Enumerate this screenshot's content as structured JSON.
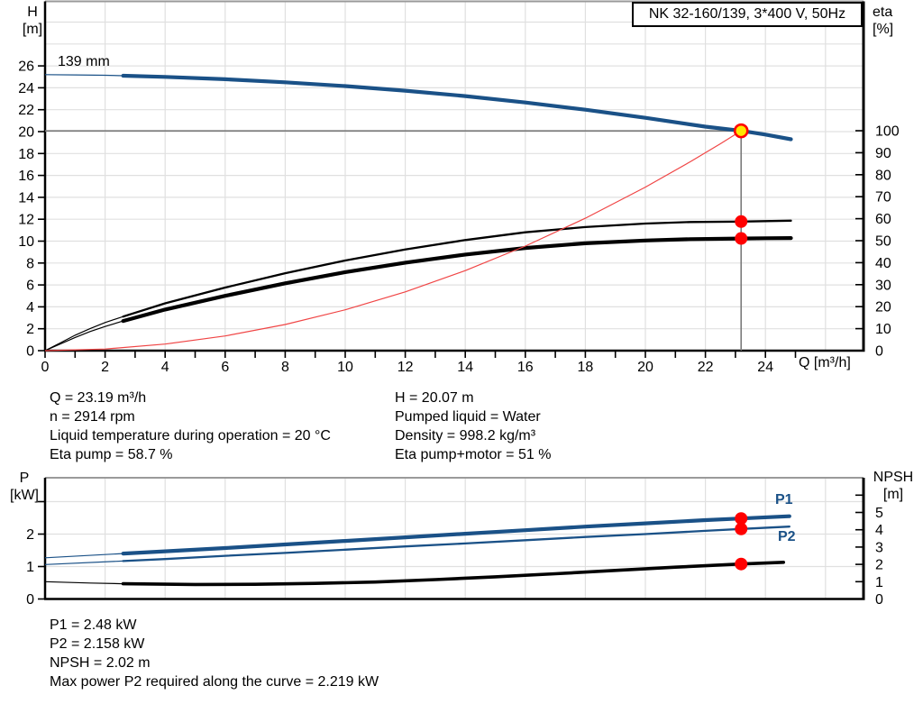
{
  "title_box": {
    "label": "NK 32-160/139, 3*400 V, 50Hz"
  },
  "colors": {
    "curve_blue": "#1a5187",
    "curve_black": "#000000",
    "system_red": "#f04545",
    "marker_red": "#ff0000",
    "marker_yellow": "#ffe600",
    "grid": "#e0e0e0",
    "top_border": "#9a9a9a",
    "duty_line": "#7a7a7a",
    "axis": "#000000"
  },
  "info_left": [
    "Q = 23.19 m³/h",
    "n = 2914 rpm",
    "Liquid temperature during operation = 20 °C",
    "Eta pump = 58.7 %"
  ],
  "info_right": [
    "H = 20.07 m",
    "Pumped liquid = Water",
    "Density = 998.2 kg/m³",
    "Eta pump+motor = 51 %"
  ],
  "info_bottom": [
    "P1 = 2.48 kW",
    "P2 = 2.158 kW",
    "NPSH = 2.02 m",
    "Max power P2 required along the curve = 2.219 kW"
  ],
  "chart_data": [
    {
      "id": "qh-chart",
      "type": "line",
      "title": "NK 32-160/139, 3*400 V, 50Hz",
      "xlabel": "Q [m³/h]",
      "y_left_label": [
        "H",
        "[m]"
      ],
      "y_right_label": [
        "eta",
        "[%]"
      ],
      "impeller_label": "139 mm",
      "xlim": [
        0,
        27.3
      ],
      "ylim_left": [
        0,
        26
      ],
      "ylim_right": [
        0,
        100
      ],
      "grid": true,
      "x_tick_labels": [
        0,
        2,
        4,
        6,
        8,
        10,
        12,
        14,
        16,
        18,
        20,
        22,
        24
      ],
      "x_tick_marks": [
        0,
        1,
        2,
        3,
        4,
        5,
        6,
        7,
        8,
        9,
        10,
        11,
        12,
        13,
        14,
        15,
        16,
        17,
        18,
        19,
        20,
        21,
        22,
        23,
        24,
        25
      ],
      "y_left_ticks": [
        0,
        2,
        4,
        6,
        8,
        10,
        12,
        14,
        16,
        18,
        20,
        22,
        24,
        26
      ],
      "y_right_ticks": [
        0,
        10,
        20,
        30,
        40,
        50,
        60,
        70,
        80,
        90,
        100
      ],
      "duty_point": {
        "q": 23.19,
        "h": 20.07
      },
      "series": [
        {
          "name": "head-curve",
          "axis": "left",
          "color": "blue",
          "width": 4.2,
          "thin_until": 2.6,
          "points": [
            [
              0,
              25.2
            ],
            [
              1,
              25.18
            ],
            [
              2,
              25.14
            ],
            [
              2.6,
              25.1
            ],
            [
              4,
              25.0
            ],
            [
              6,
              24.78
            ],
            [
              8,
              24.5
            ],
            [
              10,
              24.16
            ],
            [
              12,
              23.74
            ],
            [
              14,
              23.24
            ],
            [
              16,
              22.66
            ],
            [
              18,
              22.0
            ],
            [
              20,
              21.26
            ],
            [
              22,
              20.45
            ],
            [
              23.19,
              20.07
            ],
            [
              24,
              19.73
            ],
            [
              24.85,
              19.3
            ]
          ]
        },
        {
          "name": "eta-pump-curve",
          "axis": "right",
          "color": "black",
          "width": 2.3,
          "thin_until": 2.6,
          "points": [
            [
              0,
              0
            ],
            [
              0.5,
              3.5
            ],
            [
              1,
              7
            ],
            [
              1.5,
              10
            ],
            [
              2,
              12.8
            ],
            [
              2.6,
              15.5
            ],
            [
              4,
              21.5
            ],
            [
              6,
              28.7
            ],
            [
              8,
              35.2
            ],
            [
              10,
              41
            ],
            [
              12,
              46
            ],
            [
              14,
              50.3
            ],
            [
              16,
              53.8
            ],
            [
              18,
              56.2
            ],
            [
              20,
              57.8
            ],
            [
              21.5,
              58.5
            ],
            [
              23.19,
              58.7
            ],
            [
              24,
              58.9
            ],
            [
              24.85,
              59.1
            ]
          ]
        },
        {
          "name": "eta-pump-motor-curve",
          "axis": "right",
          "color": "black",
          "width": 4.2,
          "thin_until": 2.6,
          "points": [
            [
              0,
              0
            ],
            [
              0.5,
              3
            ],
            [
              1,
              6
            ],
            [
              1.5,
              8.7
            ],
            [
              2,
              11
            ],
            [
              2.6,
              13.5
            ],
            [
              4,
              18.7
            ],
            [
              6,
              24.9
            ],
            [
              8,
              30.6
            ],
            [
              10,
              35.7
            ],
            [
              12,
              40
            ],
            [
              14,
              43.7
            ],
            [
              16,
              46.7
            ],
            [
              18,
              48.8
            ],
            [
              20,
              50.1
            ],
            [
              21.5,
              50.7
            ],
            [
              23.19,
              51
            ],
            [
              24,
              51.1
            ],
            [
              24.85,
              51.2
            ]
          ]
        },
        {
          "name": "system-curve",
          "axis": "left",
          "color": "red",
          "width": 1.2,
          "points": [
            [
              0,
              0
            ],
            [
              2,
              0.15
            ],
            [
              4,
              0.6
            ],
            [
              6,
              1.34
            ],
            [
              8,
              2.39
            ],
            [
              10,
              3.73
            ],
            [
              12,
              5.37
            ],
            [
              14,
              7.31
            ],
            [
              16,
              9.55
            ],
            [
              18,
              12.09
            ],
            [
              20,
              14.93
            ],
            [
              21.5,
              17.25
            ],
            [
              22.5,
              18.89
            ],
            [
              23.19,
              20.07
            ]
          ]
        }
      ],
      "markers": [
        {
          "name": "duty-point-marker",
          "q": 23.19,
          "value": 20.07,
          "axis": "left",
          "style": "yellow"
        },
        {
          "name": "eta-pump-duty-marker",
          "q": 23.19,
          "value": 58.7,
          "axis": "right",
          "style": "red"
        },
        {
          "name": "eta-pump-motor-duty-marker",
          "q": 23.19,
          "value": 51,
          "axis": "right",
          "style": "red"
        }
      ]
    },
    {
      "id": "power-npsh-chart",
      "type": "line",
      "xlabel": "",
      "y_left_label": [
        "P",
        "[kW]"
      ],
      "y_right_label": [
        "NPSH",
        "[m]"
      ],
      "xlim": [
        0,
        27.3
      ],
      "ylim_left": [
        0,
        3
      ],
      "ylim_right": [
        0,
        6
      ],
      "grid": true,
      "x_tick_labels": [],
      "x_tick_marks": [],
      "y_left_ticks": [
        0,
        1,
        2
      ],
      "y_left_extra_ticks": [
        3
      ],
      "y_right_ticks": [
        0,
        1,
        2,
        3,
        4,
        5
      ],
      "y_right_extra_ticks": [
        6
      ],
      "curve_labels": [
        "P1",
        "P2"
      ],
      "series": [
        {
          "name": "p1-curve",
          "axis": "left",
          "color": "blue",
          "width": 4.2,
          "thin_until": 2.6,
          "points": [
            [
              0,
              1.27
            ],
            [
              2.6,
              1.4
            ],
            [
              4,
              1.47
            ],
            [
              6,
              1.57
            ],
            [
              8,
              1.68
            ],
            [
              10,
              1.79
            ],
            [
              12,
              1.9
            ],
            [
              14,
              2.01
            ],
            [
              16,
              2.12
            ],
            [
              18,
              2.23
            ],
            [
              20,
              2.33
            ],
            [
              22,
              2.43
            ],
            [
              23.19,
              2.48
            ],
            [
              24.8,
              2.55
            ]
          ]
        },
        {
          "name": "p2-curve",
          "axis": "left",
          "color": "blue",
          "width": 2.3,
          "thin_until": 2.6,
          "points": [
            [
              0,
              1.06
            ],
            [
              2.6,
              1.17
            ],
            [
              4,
              1.23
            ],
            [
              6,
              1.33
            ],
            [
              8,
              1.42
            ],
            [
              10,
              1.52
            ],
            [
              12,
              1.62
            ],
            [
              14,
              1.71
            ],
            [
              16,
              1.81
            ],
            [
              18,
              1.91
            ],
            [
              20,
              2.0
            ],
            [
              22,
              2.1
            ],
            [
              23.19,
              2.158
            ],
            [
              24.8,
              2.23
            ]
          ]
        },
        {
          "name": "npsh-curve",
          "axis": "right",
          "color": "black",
          "width": 3.6,
          "thin_until": 2.6,
          "points": [
            [
              0,
              1.0
            ],
            [
              1.5,
              0.92
            ],
            [
              2.6,
              0.88
            ],
            [
              5,
              0.84
            ],
            [
              7,
              0.85
            ],
            [
              9,
              0.9
            ],
            [
              11,
              0.98
            ],
            [
              13,
              1.12
            ],
            [
              15,
              1.28
            ],
            [
              17,
              1.46
            ],
            [
              19,
              1.65
            ],
            [
              21,
              1.84
            ],
            [
              23.19,
              2.02
            ],
            [
              24.6,
              2.12
            ]
          ]
        }
      ],
      "markers": [
        {
          "name": "p1-duty-marker",
          "q": 23.19,
          "value": 2.48,
          "axis": "left",
          "style": "red"
        },
        {
          "name": "p2-duty-marker",
          "q": 23.19,
          "value": 2.158,
          "axis": "left",
          "style": "red"
        },
        {
          "name": "npsh-duty-marker",
          "q": 23.19,
          "value": 2.02,
          "axis": "right",
          "style": "red"
        }
      ]
    }
  ]
}
